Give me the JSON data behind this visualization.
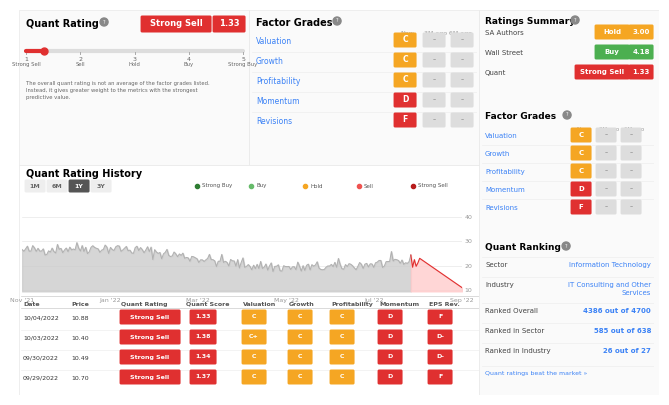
{
  "bg_color": "#ffffff",
  "quant_rating": {
    "badge_label": "Strong Sell",
    "badge_color": "#e03030",
    "score": "1.33",
    "score_color": "#e03030",
    "slider_value": 1.33,
    "tick_labels": [
      "Strong Sell",
      "Sell",
      "Hold",
      "Buy",
      "Strong Buy"
    ],
    "description": "The overall quant rating is not an average of the factor grades listed.\nInstead, it gives greater weight to the metrics with the strongest\npredictive value."
  },
  "factor_grades_main": {
    "headers": [
      "Now",
      "3M ago",
      "6M ago"
    ],
    "rows": [
      {
        "label": "Valuation",
        "now": "C",
        "now_color": "#f5a623"
      },
      {
        "label": "Growth",
        "now": "C",
        "now_color": "#f5a623"
      },
      {
        "label": "Profitability",
        "now": "C",
        "now_color": "#f5a623"
      },
      {
        "label": "Momentum",
        "now": "D",
        "now_color": "#e03030"
      },
      {
        "label": "Revisions",
        "now": "F",
        "now_color": "#e03030"
      }
    ]
  },
  "ratings_summary": {
    "rows": [
      {
        "label": "SA Authors",
        "badge": "Hold",
        "badge_color": "#f5a623",
        "score": "3.00",
        "score_color": "#f5a623"
      },
      {
        "label": "Wall Street",
        "badge": "Buy",
        "badge_color": "#4caf50",
        "score": "4.18",
        "score_color": "#4caf50"
      },
      {
        "label": "Quant",
        "badge": "Strong Sell",
        "badge_color": "#e03030",
        "score": "1.33",
        "score_color": "#e03030"
      }
    ]
  },
  "factor_grades_right": {
    "rows": [
      {
        "label": "Valuation",
        "now": "C",
        "now_color": "#f5a623"
      },
      {
        "label": "Growth",
        "now": "C",
        "now_color": "#f5a623"
      },
      {
        "label": "Profitability",
        "now": "C",
        "now_color": "#f5a623"
      },
      {
        "label": "Momentum",
        "now": "D",
        "now_color": "#e03030"
      },
      {
        "label": "Revisions",
        "now": "F",
        "now_color": "#e03030"
      }
    ]
  },
  "quant_ranking": {
    "sector_value": "Information Technology",
    "industry_line1": "IT Consulting and Other",
    "industry_line2": "Services",
    "ranked_overall_val1": "4386",
    "ranked_overall_val2": "4700",
    "ranked_sector_val1": "585",
    "ranked_sector_val2": "638",
    "ranked_industry_val1": "26",
    "ranked_industry_val2": "27",
    "footer": "Quant ratings beat the market »",
    "link_color": "#1a73e8"
  },
  "history": {
    "time_buttons": [
      "1M",
      "6M",
      "1Y",
      "3Y"
    ],
    "active_button": "1Y",
    "legend": [
      {
        "label": "Strong Buy",
        "color": "#2e7d32"
      },
      {
        "label": "Buy",
        "color": "#66bb6a"
      },
      {
        "label": "Hold",
        "color": "#f5a623"
      },
      {
        "label": "Sell",
        "color": "#ef5350"
      },
      {
        "label": "Strong Sell",
        "color": "#b71c1c"
      }
    ],
    "x_labels": [
      "Nov '21",
      "Jan '22",
      "Mar '22",
      "May '22",
      "Jul '22",
      "Sep '22"
    ],
    "y_ticks": [
      10,
      20,
      30,
      40
    ]
  },
  "table": {
    "headers": [
      "Date",
      "Price",
      "Quant Rating",
      "Quant Score",
      "Valuation",
      "Growth",
      "Profitability",
      "Momentum",
      "EPS Rev."
    ],
    "rows": [
      {
        "date": "10/04/2022",
        "price": "10.88",
        "qr": "Strong Sell",
        "qr_color": "#e03030",
        "qs": "1.33",
        "qs_color": "#e03030",
        "val": "C",
        "val_color": "#f5a623",
        "gr": "C",
        "gr_color": "#f5a623",
        "prof": "C",
        "prof_color": "#f5a623",
        "mom": "D",
        "mom_color": "#e03030",
        "eps": "F",
        "eps_color": "#e03030"
      },
      {
        "date": "10/03/2022",
        "price": "10.40",
        "qr": "Strong Sell",
        "qr_color": "#e03030",
        "qs": "1.38",
        "qs_color": "#e03030",
        "val": "C+",
        "val_color": "#f5a623",
        "gr": "C",
        "gr_color": "#f5a623",
        "prof": "C",
        "prof_color": "#f5a623",
        "mom": "D",
        "mom_color": "#e03030",
        "eps": "D-",
        "eps_color": "#e03030"
      },
      {
        "date": "09/30/2022",
        "price": "10.49",
        "qr": "Strong Sell",
        "qr_color": "#e03030",
        "qs": "1.34",
        "qs_color": "#e03030",
        "val": "C",
        "val_color": "#f5a623",
        "gr": "C",
        "gr_color": "#f5a623",
        "prof": "C",
        "prof_color": "#f5a623",
        "mom": "D",
        "mom_color": "#e03030",
        "eps": "D-",
        "eps_color": "#e03030"
      },
      {
        "date": "09/29/2022",
        "price": "10.70",
        "qr": "Strong Sell",
        "qr_color": "#e03030",
        "qs": "1.37",
        "qs_color": "#e03030",
        "val": "C",
        "val_color": "#f5a623",
        "gr": "C",
        "gr_color": "#f5a623",
        "prof": "C",
        "prof_color": "#f5a623",
        "mom": "D",
        "mom_color": "#e03030",
        "eps": "F",
        "eps_color": "#e03030"
      }
    ]
  }
}
